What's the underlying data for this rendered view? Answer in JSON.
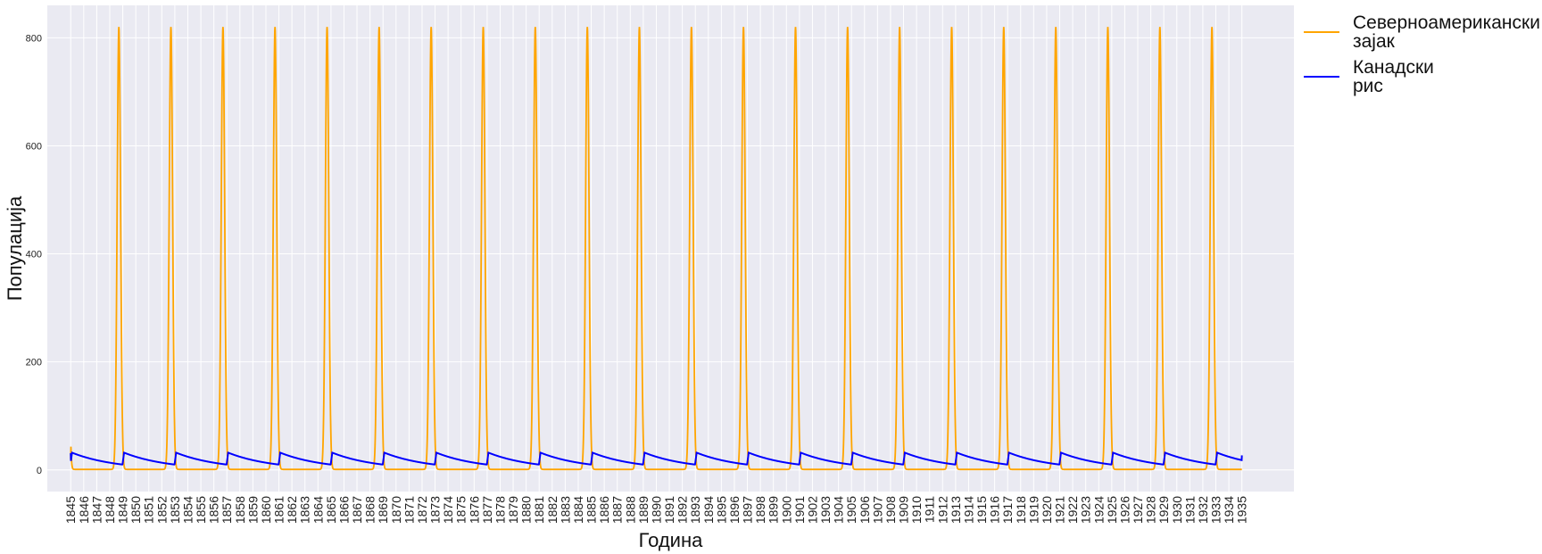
{
  "chart_data": {
    "type": "line",
    "xlabel": "Година",
    "ylabel": "Популација",
    "ylim": [
      -40,
      860
    ],
    "xlim": [
      1843.2,
      1939
    ],
    "yticks": [
      0,
      200,
      400,
      600,
      800
    ],
    "grid": true,
    "legend": {
      "placement": "outside-top-right"
    },
    "xticks": [
      1845,
      1846,
      1847,
      1848,
      1849,
      1850,
      1851,
      1852,
      1853,
      1854,
      1855,
      1856,
      1857,
      1858,
      1859,
      1860,
      1861,
      1862,
      1863,
      1864,
      1865,
      1866,
      1867,
      1868,
      1869,
      1870,
      1871,
      1872,
      1873,
      1874,
      1875,
      1876,
      1877,
      1878,
      1879,
      1880,
      1881,
      1882,
      1883,
      1884,
      1885,
      1886,
      1887,
      1888,
      1889,
      1890,
      1891,
      1892,
      1893,
      1894,
      1895,
      1896,
      1897,
      1898,
      1899,
      1900,
      1901,
      1902,
      1903,
      1904,
      1905,
      1906,
      1907,
      1908,
      1909,
      1910,
      1911,
      1912,
      1913,
      1914,
      1915,
      1916,
      1917,
      1918,
      1919,
      1920,
      1921,
      1922,
      1923,
      1924,
      1925,
      1926,
      1927,
      1928,
      1929,
      1930,
      1931,
      1932,
      1933,
      1934,
      1935
    ],
    "series": [
      {
        "name": "Северноамерикански\nзајак",
        "color": "#FFA500",
        "period_years": 4,
        "first_peak_year": 1848.7,
        "peak_value": 820,
        "trough_value": 1,
        "start": {
          "x": 1845,
          "y": 20
        },
        "end": {
          "x": 1935,
          "y": 1
        }
      },
      {
        "name": "Канадски\nрис",
        "color": "#0000FF",
        "period_years": 4,
        "first_peak_year": 1849.1,
        "peak_value": 32,
        "trough_value": 10,
        "start": {
          "x": 1845,
          "y": 31
        },
        "end": {
          "x": 1935,
          "y": 27
        }
      }
    ]
  }
}
